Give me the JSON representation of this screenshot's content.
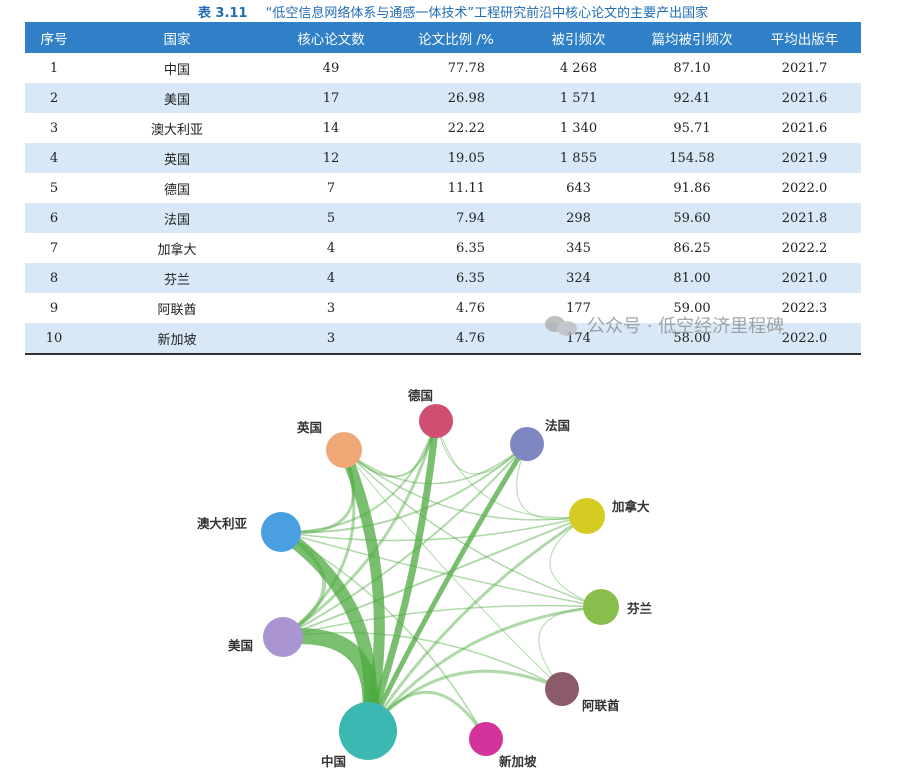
{
  "caption": {
    "number": "表 3.11",
    "title": "“低空信息网络体系与通感一体技术”工程研究前沿中核心论文的主要产出国家"
  },
  "table": {
    "headers": [
      "序号",
      "国家",
      "核心论文数",
      "论文比例 /%",
      "被引频次",
      "篇均被引频次",
      "平均出版年"
    ],
    "rows": [
      [
        "1",
        "中国",
        "49",
        "77.78",
        "4 268",
        "87.10",
        "2021.7"
      ],
      [
        "2",
        "美国",
        "17",
        "26.98",
        "1 571",
        "92.41",
        "2021.6"
      ],
      [
        "3",
        "澳大利亚",
        "14",
        "22.22",
        "1 340",
        "95.71",
        "2021.6"
      ],
      [
        "4",
        "英国",
        "12",
        "19.05",
        "1 855",
        "154.58",
        "2021.9"
      ],
      [
        "5",
        "德国",
        "7",
        "11.11",
        "643",
        "91.86",
        "2022.0"
      ],
      [
        "6",
        "法国",
        "5",
        "7.94",
        "298",
        "59.60",
        "2021.8"
      ],
      [
        "7",
        "加拿大",
        "4",
        "6.35",
        "345",
        "86.25",
        "2022.2"
      ],
      [
        "8",
        "芬兰",
        "4",
        "6.35",
        "324",
        "81.00",
        "2021.0"
      ],
      [
        "9",
        "阿联酋",
        "3",
        "4.76",
        "177",
        "59.00",
        "2022.3"
      ],
      [
        "10",
        "新加坡",
        "3",
        "4.76",
        "174",
        "58.00",
        "2022.0"
      ]
    ]
  },
  "watermark": "公众号 · 低空经济里程碑",
  "network": {
    "nodes": [
      {
        "name": "德国",
        "color": "#cf4f72"
      },
      {
        "name": "法国",
        "color": "#7f87c2"
      },
      {
        "name": "加拿大",
        "color": "#d6cb23"
      },
      {
        "name": "芬兰",
        "color": "#8abe4c"
      },
      {
        "name": "阿联酋",
        "color": "#8c5b6a"
      },
      {
        "name": "新加坡",
        "color": "#d5339c"
      },
      {
        "name": "中国",
        "color": "#3cb8b2"
      },
      {
        "name": "美国",
        "color": "#ab94d2"
      },
      {
        "name": "澳大利亚",
        "color": "#4a9fe0"
      },
      {
        "name": "英国",
        "color": "#f1a877"
      }
    ],
    "link_color": "#4daa3f"
  }
}
